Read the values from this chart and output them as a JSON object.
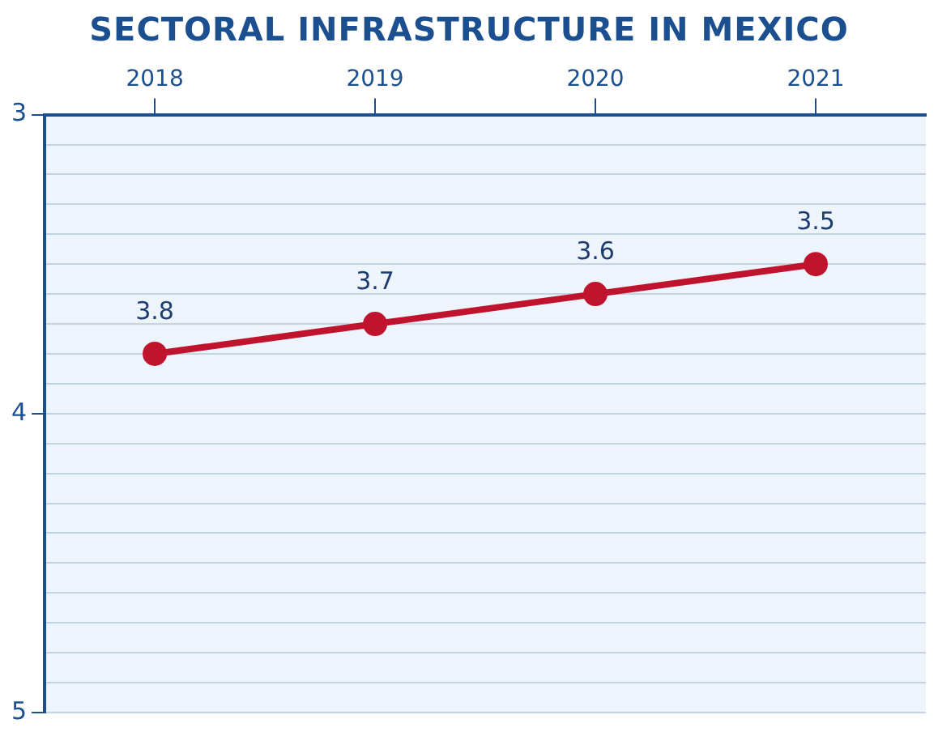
{
  "chart_data": {
    "type": "line",
    "title": "SECTORAL INFRASTRUCTURE IN MEXICO",
    "categories": [
      "2018",
      "2019",
      "2020",
      "2021"
    ],
    "series": [
      {
        "color": "#c0142e",
        "values": [
          3.8,
          3.7,
          3.6,
          3.5
        ]
      }
    ],
    "ylim": [
      5,
      3
    ],
    "yticks": [
      3,
      {
        "value": 3.1,
        "label": null
      },
      {
        "value": 3.2,
        "label": null
      },
      {
        "value": 3.3,
        "label": null
      },
      {
        "value": 3.4,
        "label": null
      },
      {
        "value": 3.5,
        "label": null
      },
      {
        "value": 3.6,
        "label": null
      },
      {
        "value": 3.7,
        "label": null
      },
      {
        "value": 3.8,
        "label": null
      },
      {
        "value": 3.9,
        "label": null
      },
      4,
      {
        "value": 4.1,
        "label": null
      },
      {
        "value": 4.2,
        "label": null
      },
      {
        "value": 4.3,
        "label": null
      },
      {
        "value": 4.4,
        "label": null
      },
      {
        "value": 4.5,
        "label": null
      },
      {
        "value": 4.6,
        "label": null
      },
      {
        "value": 4.7,
        "label": null
      },
      {
        "value": 4.8,
        "label": null
      },
      {
        "value": 4.9,
        "label": null
      },
      5
    ],
    "grid": "y",
    "marker": "circle",
    "line_style": "solid",
    "data_labels": true,
    "legend": false
  }
}
